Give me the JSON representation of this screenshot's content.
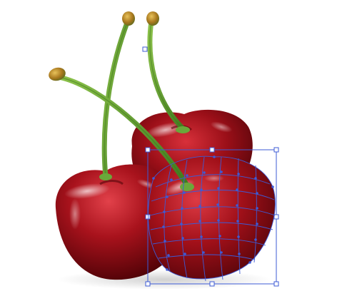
{
  "illustration": {
    "subject": "cherries",
    "colors": {
      "cherry_dark": "#4a0308",
      "cherry_mid": "#9b0f18",
      "cherry_light": "#d8303a",
      "stem_green": "#6aa83a",
      "stem_dark": "#3f7a1e",
      "stem_tip": "#b88a2a",
      "mesh_blue": "#3d5bd6",
      "background": "#ffffff"
    },
    "icons": [
      "mesh-handle-icon"
    ]
  },
  "selection": {
    "tool": "gradient-mesh",
    "active": true
  }
}
